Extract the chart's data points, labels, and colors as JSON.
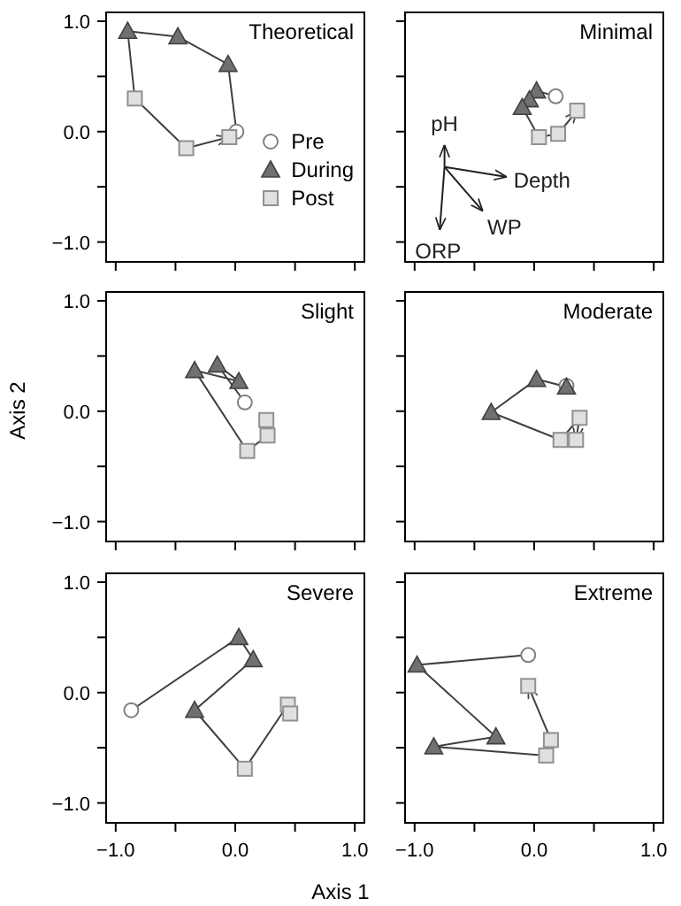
{
  "chart_data": [
    {
      "type": "scatter",
      "title": "Theoretical",
      "xlim": [
        -1.08,
        1.08
      ],
      "ylim": [
        -1.18,
        1.08
      ],
      "xticks": [
        {
          "value": -1,
          "label": null
        },
        {
          "value": -0.5,
          "label": null
        },
        {
          "value": 0,
          "label": null
        },
        {
          "value": 0.5,
          "label": null
        },
        {
          "value": 1,
          "label": null
        }
      ],
      "yticks": [
        {
          "value": -1,
          "label": "−1.0"
        },
        {
          "value": -0.5,
          "label": null
        },
        {
          "value": 0,
          "label": "0.0"
        },
        {
          "value": 0.5,
          "label": null
        },
        {
          "value": 1,
          "label": "1.0"
        }
      ],
      "tick_labels": "y",
      "legend": "bottom right",
      "series": [
        {
          "type": "line",
          "color": "#404040",
          "x": [
            0.01,
            -0.06,
            -0.48,
            -0.9,
            -0.84,
            -0.41,
            -0.05
          ],
          "values": [
            0,
            0.61,
            0.86,
            0.91,
            0.3,
            -0.15,
            -0.05
          ]
        },
        {
          "name": "Pre",
          "color": "#808080",
          "marker": "circle",
          "x": [
            0.01
          ],
          "values": [
            0
          ]
        },
        {
          "name": "During",
          "color": "#707070",
          "marker": "triangle",
          "x": [
            -0.06,
            -0.48,
            -0.9
          ],
          "values": [
            0.61,
            0.86,
            0.91
          ]
        },
        {
          "name": "Post",
          "color": "#909090",
          "marker": "square",
          "x": [
            -0.84,
            -0.41,
            -0.05
          ],
          "values": [
            0.3,
            -0.15,
            -0.05
          ]
        }
      ]
    },
    {
      "type": "scatter",
      "title": "Minimal",
      "xlim": [
        -1.08,
        1.08
      ],
      "ylim": [
        -1.18,
        1.08
      ],
      "xticks": [
        {
          "value": -1,
          "label": null
        },
        {
          "value": -0.5,
          "label": null
        },
        {
          "value": 0,
          "label": null
        },
        {
          "value": 0.5,
          "label": null
        },
        {
          "value": 1,
          "label": null
        }
      ],
      "yticks": [
        {
          "value": -1,
          "label": null
        },
        {
          "value": -0.5,
          "label": null
        },
        {
          "value": 0,
          "label": null
        },
        {
          "value": 0.5,
          "label": null
        },
        {
          "value": 1,
          "label": null
        }
      ],
      "tick_labels": false,
      "series": [
        {
          "type": "line",
          "color": "#404040",
          "x": [
            0.18,
            0.02,
            -0.04,
            -0.1,
            0.04,
            0.2,
            0.36
          ],
          "values": [
            0.32,
            0.37,
            0.29,
            0.22,
            -0.05,
            -0.02,
            0.19
          ]
        },
        {
          "color": "#808080",
          "marker": "circle",
          "x": [
            0.18
          ],
          "values": [
            0.32
          ]
        },
        {
          "color": "#707070",
          "marker": "triangle",
          "x": [
            0.02,
            -0.04,
            -0.1
          ],
          "values": [
            0.37,
            0.29,
            0.22
          ]
        },
        {
          "color": "#909090",
          "marker": "square",
          "x": [
            0.04,
            0.2,
            0.36
          ],
          "values": [
            -0.05,
            -0.02,
            0.19
          ]
        },
        {
          "type": "line",
          "name": "pH",
          "color": "#202020",
          "x": [
            -0.75,
            -0.75
          ],
          "values": [
            -0.32,
            -0.12
          ]
        },
        {
          "type": "line",
          "name": "Depth",
          "color": "#202020",
          "x": [
            -0.75,
            -0.23
          ],
          "values": [
            -0.32,
            -0.41
          ]
        },
        {
          "type": "line",
          "name": "WP",
          "color": "#202020",
          "x": [
            -0.75,
            -0.43
          ],
          "values": [
            -0.32,
            -0.72
          ]
        },
        {
          "type": "line",
          "name": "ORP",
          "color": "#202020",
          "x": [
            -0.75,
            -0.79
          ],
          "values": [
            -0.32,
            -0.89
          ]
        }
      ]
    },
    {
      "type": "scatter",
      "title": "Slight",
      "ylabel": "Axis 2",
      "xlim": [
        -1.08,
        1.08
      ],
      "ylim": [
        -1.18,
        1.08
      ],
      "xticks": [
        {
          "value": -1,
          "label": null
        },
        {
          "value": -0.5,
          "label": null
        },
        {
          "value": 0,
          "label": null
        },
        {
          "value": 0.5,
          "label": null
        },
        {
          "value": 1,
          "label": null
        }
      ],
      "yticks": [
        {
          "value": -1,
          "label": "−1.0"
        },
        {
          "value": -0.5,
          "label": null
        },
        {
          "value": 0,
          "label": "0.0"
        },
        {
          "value": 0.5,
          "label": null
        },
        {
          "value": 1,
          "label": "1.0"
        }
      ],
      "tick_labels": "y",
      "series": [
        {
          "type": "line",
          "color": "#404040",
          "x": [
            0.08,
            -0.15,
            0.03,
            -0.34,
            0.1,
            0.27,
            0.26
          ],
          "values": [
            0.08,
            0.42,
            0.27,
            0.37,
            -0.36,
            -0.22,
            -0.08
          ]
        },
        {
          "color": "#808080",
          "marker": "circle",
          "x": [
            0.08
          ],
          "values": [
            0.08
          ]
        },
        {
          "color": "#707070",
          "marker": "triangle",
          "x": [
            -0.15,
            0.03,
            -0.34
          ],
          "values": [
            0.42,
            0.27,
            0.37
          ]
        },
        {
          "color": "#909090",
          "marker": "square",
          "x": [
            0.1,
            0.27,
            0.26
          ],
          "values": [
            -0.36,
            -0.22,
            -0.08
          ]
        }
      ]
    },
    {
      "type": "scatter",
      "title": "Moderate",
      "xlim": [
        -1.08,
        1.08
      ],
      "ylim": [
        -1.18,
        1.08
      ],
      "xticks": [
        {
          "value": -1,
          "label": null
        },
        {
          "value": -0.5,
          "label": null
        },
        {
          "value": 0,
          "label": null
        },
        {
          "value": 0.5,
          "label": null
        },
        {
          "value": 1,
          "label": null
        }
      ],
      "yticks": [
        {
          "value": -1,
          "label": null
        },
        {
          "value": -0.5,
          "label": null
        },
        {
          "value": 0,
          "label": null
        },
        {
          "value": 0.5,
          "label": null
        },
        {
          "value": 1,
          "label": null
        }
      ],
      "tick_labels": false,
      "series": [
        {
          "type": "line",
          "color": "#404040",
          "x": [
            0.27,
            0.27,
            0.02,
            -0.36,
            0.22,
            0.38,
            0.35
          ],
          "values": [
            0.23,
            0.22,
            0.29,
            -0.01,
            -0.26,
            -0.06,
            -0.26
          ]
        },
        {
          "color": "#808080",
          "marker": "circle",
          "x": [
            0.27
          ],
          "values": [
            0.23
          ]
        },
        {
          "color": "#707070",
          "marker": "triangle",
          "x": [
            0.27,
            0.02,
            -0.36
          ],
          "values": [
            0.22,
            0.29,
            -0.01
          ]
        },
        {
          "color": "#909090",
          "marker": "square",
          "x": [
            0.22,
            0.38,
            0.35
          ],
          "values": [
            -0.26,
            -0.06,
            -0.26
          ]
        }
      ]
    },
    {
      "type": "scatter",
      "title": "Severe",
      "xlabel": "Axis 1",
      "xlim": [
        -1.08,
        1.08
      ],
      "ylim": [
        -1.18,
        1.08
      ],
      "xticks": [
        {
          "value": -1,
          "label": "−1.0"
        },
        {
          "value": -0.5,
          "label": null
        },
        {
          "value": 0,
          "label": "0.0"
        },
        {
          "value": 0.5,
          "label": null
        },
        {
          "value": 1,
          "label": "1.0"
        }
      ],
      "yticks": [
        {
          "value": -1,
          "label": "−1.0"
        },
        {
          "value": -0.5,
          "label": null
        },
        {
          "value": 0,
          "label": "0.0"
        },
        {
          "value": 0.5,
          "label": null
        },
        {
          "value": 1,
          "label": "1.0"
        }
      ],
      "series": [
        {
          "type": "line",
          "color": "#404040",
          "x": [
            -0.87,
            0.03,
            0.15,
            -0.34,
            0.08,
            0.44,
            0.46
          ],
          "values": [
            -0.16,
            0.5,
            0.3,
            -0.16,
            -0.69,
            -0.11,
            -0.19
          ]
        },
        {
          "color": "#808080",
          "marker": "circle",
          "x": [
            -0.87
          ],
          "values": [
            -0.16
          ]
        },
        {
          "color": "#707070",
          "marker": "triangle",
          "x": [
            0.03,
            0.15,
            -0.34
          ],
          "values": [
            0.5,
            0.3,
            -0.16
          ]
        },
        {
          "color": "#909090",
          "marker": "square",
          "x": [
            0.08,
            0.44,
            0.46
          ],
          "values": [
            -0.69,
            -0.11,
            -0.19
          ]
        }
      ]
    },
    {
      "type": "scatter",
      "title": "Extreme",
      "xlim": [
        -1.08,
        1.08
      ],
      "ylim": [
        -1.18,
        1.08
      ],
      "xticks": [
        {
          "value": -1,
          "label": "−1.0"
        },
        {
          "value": -0.5,
          "label": null
        },
        {
          "value": 0,
          "label": "0.0"
        },
        {
          "value": 0.5,
          "label": null
        },
        {
          "value": 1,
          "label": "1.0"
        }
      ],
      "yticks": [
        {
          "value": -1,
          "label": null
        },
        {
          "value": -0.5,
          "label": null
        },
        {
          "value": 0,
          "label": null
        },
        {
          "value": 0.5,
          "label": null
        },
        {
          "value": 1,
          "label": null
        }
      ],
      "tick_labels": "x",
      "series": [
        {
          "type": "line",
          "color": "#404040",
          "x": [
            -0.05,
            -0.98,
            -0.32,
            -0.84,
            0.1,
            0.14,
            -0.05
          ],
          "values": [
            0.34,
            0.25,
            -0.4,
            -0.49,
            -0.57,
            -0.43,
            0.06
          ]
        },
        {
          "color": "#808080",
          "marker": "circle",
          "x": [
            -0.05
          ],
          "values": [
            0.34
          ]
        },
        {
          "color": "#707070",
          "marker": "triangle",
          "x": [
            -0.98,
            -0.32,
            -0.84
          ],
          "values": [
            0.25,
            -0.4,
            -0.49
          ]
        },
        {
          "color": "#909090",
          "marker": "square",
          "x": [
            0.1,
            0.14,
            -0.05
          ],
          "values": [
            -0.57,
            -0.43,
            0.06
          ]
        }
      ]
    }
  ]
}
